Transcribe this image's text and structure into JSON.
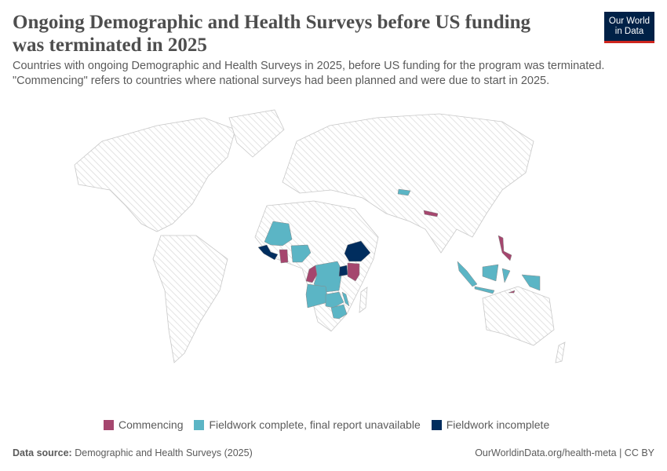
{
  "header": {
    "title": "Ongoing Demographic and Health Surveys before US funding was terminated in 2025",
    "subtitle": "Countries with ongoing Demographic and Health Surveys in 2025, before US funding for the program was terminated. \"Commencing\" refers to countries where national surveys had been planned and were due to start in 2025.",
    "logo_line1": "Our World",
    "logo_line2": "in Data"
  },
  "colors": {
    "commencing": "#a5466e",
    "fieldwork_complete": "#5bb5c5",
    "fieldwork_incomplete": "#002d5e",
    "no_data": "#ededed",
    "border": "#c8c8c8"
  },
  "legend": [
    {
      "label": "Commencing",
      "key": "commencing"
    },
    {
      "label": "Fieldwork complete, final report unavailable",
      "key": "fieldwork_complete"
    },
    {
      "label": "Fieldwork incomplete",
      "key": "fieldwork_incomplete"
    }
  ],
  "map_data": {
    "commencing": [
      "Ghana",
      "Republic of the Congo",
      "Kenya",
      "Burundi",
      "Nepal",
      "Philippines",
      "Timor-Leste"
    ],
    "fieldwork_complete": [
      "Mali",
      "Nigeria",
      "Democratic Republic of Congo",
      "Angola",
      "Zambia",
      "Malawi",
      "Zimbabwe",
      "Tajikistan",
      "Indonesia"
    ],
    "fieldwork_incomplete": [
      "Guinea",
      "Ethiopia",
      "Uganda"
    ]
  },
  "footer": {
    "source_label": "Data source:",
    "source_text": "Demographic and Health Surveys (2025)",
    "right_text": "OurWorldinData.org/health-meta | CC BY"
  }
}
